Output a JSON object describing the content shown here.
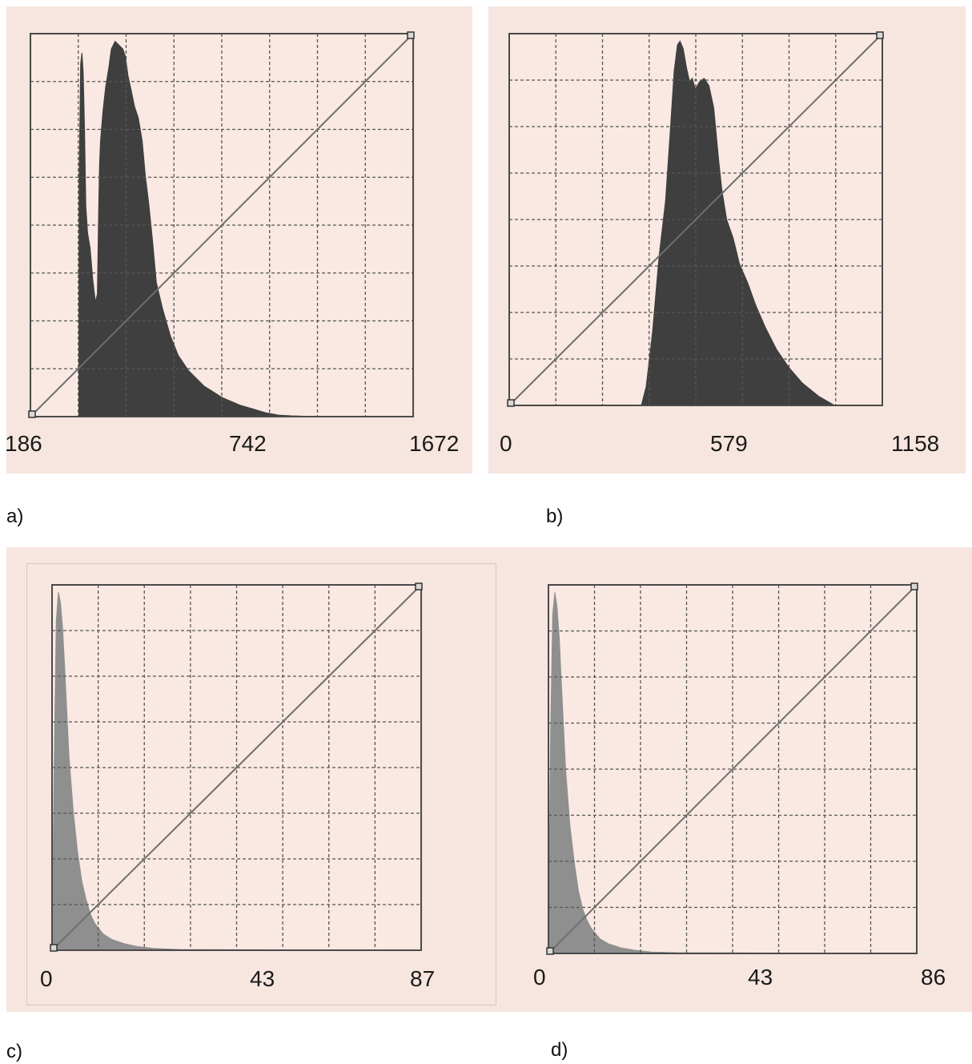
{
  "colors": {
    "panel_bg": "#f7e6df",
    "plot_bg": "#f9e9e2",
    "grid": "#555555",
    "histogram_dark": "#3f3f3f",
    "histogram_light": "#8f8f8f",
    "diagonal": "#6e6e6e"
  },
  "chart_data": [
    {
      "id": "a",
      "caption": "a)",
      "type": "area",
      "grid": true,
      "grid_divisions": 8,
      "xlim": [
        186,
        1672
      ],
      "ticks": [
        "186",
        "742",
        "1672"
      ],
      "diagonal_curve": true,
      "histogram_color": "dark",
      "histogram": {
        "x": [
          186,
          374,
          375,
          381,
          386,
          391,
          396,
          401,
          408,
          418,
          428,
          438,
          446,
          450,
          454,
          458,
          468,
          478,
          490,
          500,
          515,
          530,
          545,
          555,
          565,
          575,
          590,
          605,
          620,
          632,
          645,
          660,
          675,
          700,
          730,
          760,
          800,
          860,
          930,
          1000,
          1050,
          1100,
          1150,
          1200,
          1250,
          1300,
          1672
        ],
        "y": [
          0,
          0,
          0.62,
          0.92,
          0.95,
          0.9,
          0.75,
          0.55,
          0.48,
          0.44,
          0.36,
          0.3,
          0.32,
          0.5,
          0.65,
          0.72,
          0.8,
          0.86,
          0.91,
          0.96,
          0.98,
          0.97,
          0.96,
          0.94,
          0.89,
          0.86,
          0.81,
          0.78,
          0.72,
          0.63,
          0.56,
          0.46,
          0.35,
          0.28,
          0.21,
          0.16,
          0.12,
          0.08,
          0.05,
          0.03,
          0.02,
          0.01,
          0.004,
          0.002,
          0.001,
          0,
          0
        ]
      }
    },
    {
      "id": "b",
      "caption": "b)",
      "type": "area",
      "grid": true,
      "grid_divisions": 8,
      "xlim": [
        0,
        1158
      ],
      "ticks": [
        "0",
        "579",
        "1158"
      ],
      "diagonal_curve": true,
      "histogram_color": "dark",
      "histogram": {
        "x": [
          0,
          410,
          425,
          445,
          465,
          485,
          500,
          512,
          522,
          530,
          540,
          550,
          560,
          568,
          578,
          590,
          605,
          620,
          635,
          650,
          660,
          675,
          695,
          715,
          740,
          765,
          795,
          830,
          870,
          910,
          960,
          1010,
          1158
        ],
        "y": [
          0,
          0,
          0.05,
          0.2,
          0.4,
          0.55,
          0.74,
          0.9,
          0.97,
          0.98,
          0.96,
          0.91,
          0.87,
          0.88,
          0.85,
          0.87,
          0.88,
          0.86,
          0.8,
          0.66,
          0.58,
          0.5,
          0.45,
          0.38,
          0.33,
          0.27,
          0.21,
          0.15,
          0.1,
          0.06,
          0.025,
          0,
          0
        ]
      }
    },
    {
      "id": "c",
      "caption": "c)",
      "type": "area",
      "grid": true,
      "grid_divisions": 8,
      "xlim": [
        0,
        87
      ],
      "ticks": [
        "0",
        "43",
        "87"
      ],
      "diagonal_curve": true,
      "histogram_color": "light",
      "histogram": {
        "x": [
          0,
          0.5,
          1,
          1.5,
          2,
          2.5,
          3,
          3.5,
          4,
          5,
          6,
          7,
          8,
          9,
          10,
          12,
          14,
          17,
          20,
          24,
          30,
          87
        ],
        "y": [
          0,
          0.5,
          0.9,
          0.98,
          0.95,
          0.88,
          0.77,
          0.65,
          0.53,
          0.38,
          0.27,
          0.19,
          0.14,
          0.1,
          0.075,
          0.045,
          0.03,
          0.018,
          0.01,
          0.005,
          0.002,
          0
        ]
      }
    },
    {
      "id": "d",
      "caption": "d)",
      "type": "area",
      "grid": true,
      "grid_divisions": 8,
      "xlim": [
        0,
        86
      ],
      "ticks": [
        "0",
        "43",
        "86"
      ],
      "diagonal_curve": true,
      "histogram_color": "light",
      "histogram": {
        "x": [
          0,
          0.5,
          1,
          1.5,
          2,
          2.5,
          3,
          3.5,
          4,
          5,
          6,
          7,
          8,
          9,
          10,
          12,
          14,
          17,
          20,
          24,
          30,
          86
        ],
        "y": [
          0,
          0.6,
          0.92,
          0.98,
          0.94,
          0.86,
          0.74,
          0.62,
          0.5,
          0.35,
          0.25,
          0.17,
          0.12,
          0.09,
          0.068,
          0.04,
          0.026,
          0.015,
          0.009,
          0.004,
          0.002,
          0
        ]
      }
    }
  ]
}
